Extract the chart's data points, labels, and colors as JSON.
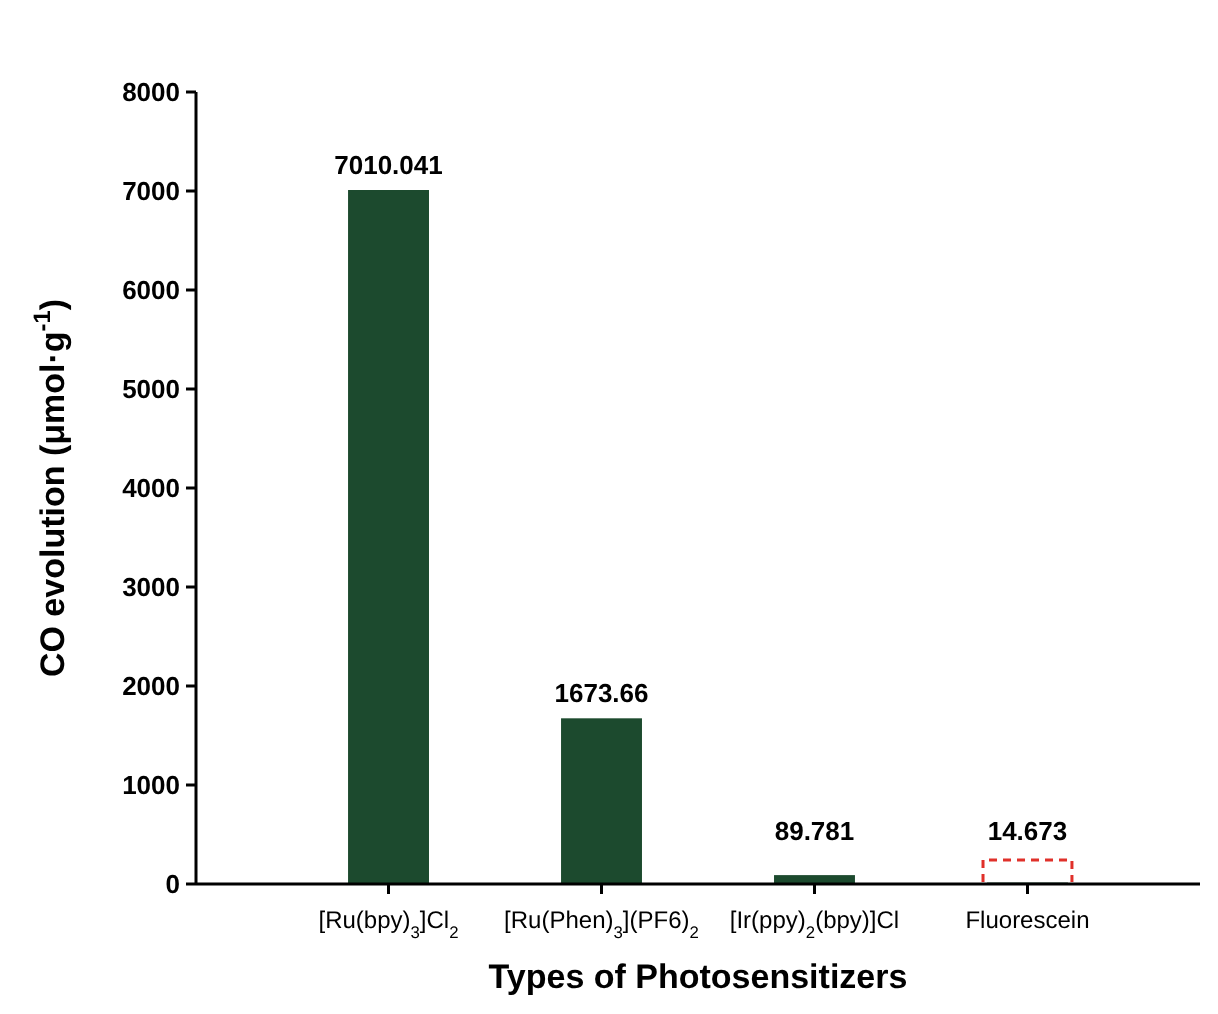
{
  "chart_data": {
    "type": "bar",
    "xlabel": "Types of Photosensitizers",
    "ylabel": "CO evolution (μmol·g$^{-1}$)",
    "categories": [
      "[Ru(bpy)$_{3}$]Cl$_{2}$",
      "[Ru(Phen)$_{3}$](PF6)$_{2}$",
      "[Ir(ppy)$_{2}$(bpy)]Cl",
      "Fluorescein"
    ],
    "values": [
      7010.041,
      1673.66,
      89.781,
      14.673
    ],
    "color": "#1c4a2e",
    "data_labels": true,
    "ylim": [
      0,
      8000
    ],
    "yticks": [
      0,
      1000,
      2000,
      3000,
      4000,
      5000,
      6000,
      7000,
      8000
    ],
    "grid": false
  }
}
